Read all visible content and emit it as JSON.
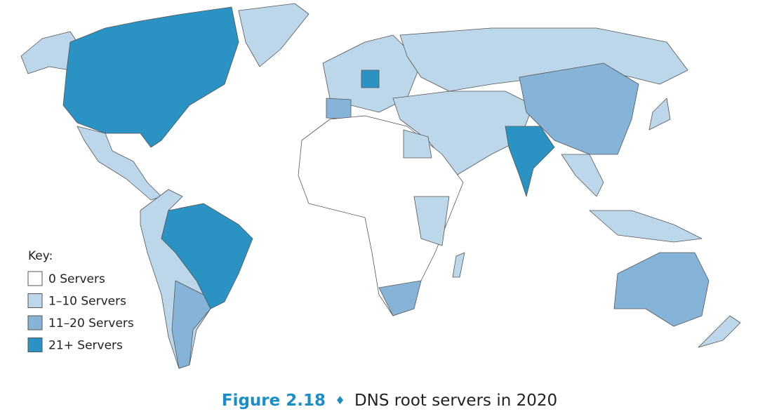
{
  "legend": {
    "title": "Key:",
    "items": [
      {
        "label": "0 Servers",
        "color": "#ffffff"
      },
      {
        "label": "1–10 Servers",
        "color": "#bcd7ea"
      },
      {
        "label": "11–20 Servers",
        "color": "#86b4d8"
      },
      {
        "label": "21+ Servers",
        "color": "#2a93c4"
      }
    ]
  },
  "caption": {
    "label": "Figure 2.18",
    "separator": "♦",
    "text": "DNS root servers in 2020"
  }
}
